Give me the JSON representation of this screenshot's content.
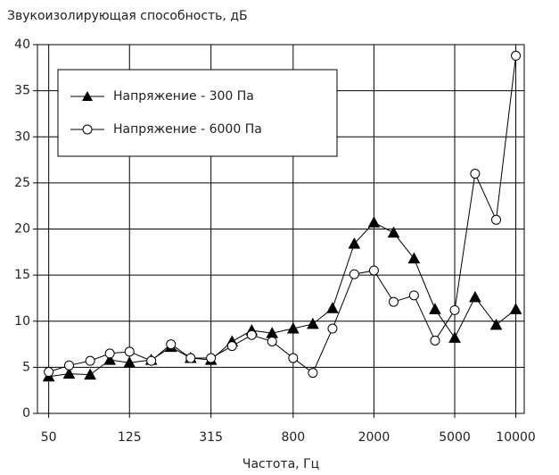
{
  "chart_data": {
    "type": "line",
    "title": "Звукоизолирующая способность, дБ",
    "x_label": "Частота, Гц",
    "x": [
      50,
      63,
      80,
      100,
      125,
      160,
      200,
      250,
      315,
      400,
      500,
      630,
      800,
      1000,
      1250,
      1600,
      2000,
      2500,
      3150,
      4000,
      5000,
      6300,
      8000,
      10000
    ],
    "series": [
      {
        "name": "Напряжение - 300 Па",
        "color": "#000000",
        "marker": "triangle",
        "values": [
          4.0,
          4.3,
          4.2,
          5.8,
          5.5,
          5.8,
          7.2,
          6.0,
          5.8,
          7.8,
          9.0,
          8.7,
          9.2,
          9.7,
          11.4,
          18.4,
          20.7,
          19.6,
          16.8,
          11.3,
          8.2,
          12.6,
          9.6,
          11.3
        ]
      },
      {
        "name": "Напряжение - 6000 Па",
        "color": "#000000",
        "marker": "circle",
        "values": [
          4.5,
          5.2,
          5.7,
          6.5,
          6.7,
          5.7,
          7.5,
          6.0,
          6.0,
          7.3,
          8.5,
          7.8,
          6.0,
          4.4,
          9.2,
          15.1,
          15.5,
          12.1,
          12.8,
          7.9,
          11.2,
          26.0,
          21.0,
          38.8
        ]
      }
    ],
    "xlog": true,
    "xlim": [
      44,
      11000
    ],
    "xticks": [
      50,
      125,
      315,
      800,
      2000,
      5000,
      10000
    ],
    "ylim": [
      0,
      40
    ],
    "yticks": [
      0,
      5,
      10,
      15,
      20,
      25,
      30,
      35,
      40
    ],
    "grid": true,
    "legend": "upper left"
  }
}
